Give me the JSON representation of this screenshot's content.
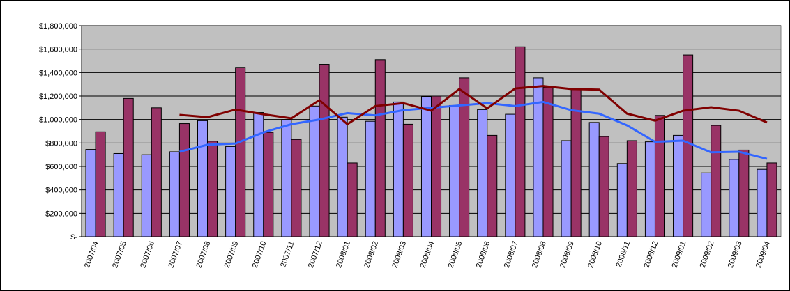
{
  "chart_data": {
    "type": "combo",
    "categories": [
      "2007/04",
      "2007/05",
      "2007/06",
      "2007/07",
      "2007/08",
      "2007/09",
      "2007/10",
      "2007/11",
      "2007/12",
      "2008/01",
      "2008/02",
      "2008/03",
      "2008/04",
      "2008/05",
      "2008/06",
      "2008/07",
      "2008/08",
      "2008/09",
      "2008/10",
      "2008/11",
      "2008/12",
      "2009/01",
      "2009/02",
      "2009/03",
      "2009/04"
    ],
    "series": [
      {
        "type": "bar",
        "color": "#9999ff",
        "values": [
          745000,
          710000,
          700000,
          725000,
          990000,
          770000,
          1060000,
          1000000,
          1115000,
          1020000,
          985000,
          1150000,
          1195000,
          1120000,
          1085000,
          1045000,
          1355000,
          820000,
          975000,
          625000,
          810000,
          865000,
          545000,
          660000,
          575000
        ]
      },
      {
        "type": "bar",
        "color": "#993366",
        "values": [
          895000,
          1180000,
          1100000,
          965000,
          815000,
          1445000,
          890000,
          830000,
          1470000,
          630000,
          1510000,
          960000,
          1200000,
          1355000,
          865000,
          1620000,
          1275000,
          1255000,
          855000,
          820000,
          1035000,
          1550000,
          950000,
          740000,
          630000
        ]
      },
      {
        "type": "line",
        "color": "#3366ff",
        "values": [
          null,
          null,
          null,
          725000,
          785000,
          795000,
          890000,
          960000,
          1000000,
          1055000,
          1035000,
          1080000,
          1100000,
          1120000,
          1140000,
          1115000,
          1150000,
          1080000,
          1050000,
          950000,
          810000,
          820000,
          720000,
          725000,
          665000
        ]
      },
      {
        "type": "line",
        "color": "#800000",
        "values": [
          null,
          null,
          null,
          1040000,
          1020000,
          1085000,
          1045000,
          1010000,
          1165000,
          960000,
          1115000,
          1140000,
          1075000,
          1260000,
          1095000,
          1265000,
          1285000,
          1260000,
          1255000,
          1050000,
          990000,
          1075000,
          1105000,
          1075000,
          975000
        ]
      }
    ],
    "ylim": [
      0,
      1800000
    ],
    "yticks": [
      {
        "value": 0,
        "label": "$-"
      },
      {
        "value": 200000,
        "label": "$200,000"
      },
      {
        "value": 400000,
        "label": "$400,000"
      },
      {
        "value": 600000,
        "label": "$600,000"
      },
      {
        "value": 800000,
        "label": "$800,000"
      },
      {
        "value": 1000000,
        "label": "$1,000,000"
      },
      {
        "value": 1200000,
        "label": "$1,200,000"
      },
      {
        "value": 1400000,
        "label": "$1,400,000"
      },
      {
        "value": 1600000,
        "label": "$1,600,000"
      },
      {
        "value": 1800000,
        "label": "$1,800,000"
      }
    ],
    "grid": true,
    "plot_background": "#c0c0c0"
  }
}
